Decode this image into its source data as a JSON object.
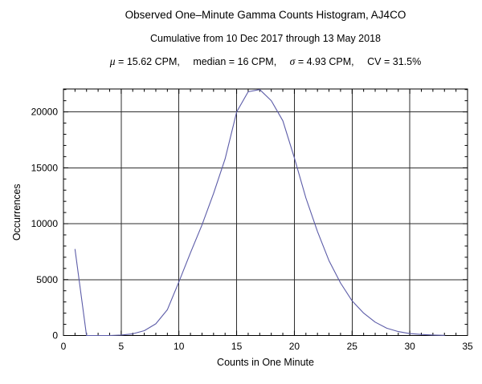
{
  "header": {
    "title": "Observed One–Minute Gamma Counts Histogram, AJ4CO",
    "subtitle": "Cumulative from 10 Dec 2017 through 13 May 2018",
    "stats": {
      "mu_symbol": "μ",
      "mu_text": " = 15.62 CPM,",
      "median_text": "median = 16 CPM,",
      "sigma_symbol": "σ",
      "sigma_text": " = 4.93 CPM,",
      "cv_text": "CV = 31.5%"
    }
  },
  "chart_data": {
    "type": "line",
    "title": "Observed One–Minute Gamma Counts Histogram, AJ4CO",
    "subtitle": "Cumulative from 10 Dec 2017 through 13 May 2018",
    "stats_label": "μ = 15.62 CPM,  median = 16 CPM,  σ = 4.93 CPM,  CV = 31.5%",
    "xlabel": "Counts in One Minute",
    "ylabel": "Occurrences",
    "xlim": [
      0,
      35
    ],
    "ylim": [
      0,
      22050
    ],
    "x_major_ticks": [
      0,
      5,
      10,
      15,
      20,
      25,
      30,
      35
    ],
    "y_major_ticks": [
      0,
      5000,
      10000,
      15000,
      20000
    ],
    "x_minor_step": 1,
    "y_minor_step": 1000,
    "grid": true,
    "legend": "none",
    "frame": true,
    "colors": {
      "line": "#5c5ca8",
      "grid": "#2e2e2e",
      "frame": "#000000",
      "text": "#000000",
      "background": "#ffffff"
    },
    "series": [
      {
        "name": "occurrences",
        "x": [
          1,
          2,
          3,
          4,
          5,
          6,
          7,
          8,
          9,
          10,
          11,
          12,
          13,
          14,
          15,
          16,
          17,
          18,
          19,
          20,
          21,
          22,
          23,
          24,
          25,
          26,
          27,
          28,
          29,
          30,
          31,
          32,
          33
        ],
        "y": [
          7700,
          0,
          0,
          0,
          40,
          150,
          430,
          1050,
          2300,
          4800,
          7400,
          9900,
          12700,
          15800,
          20000,
          21800,
          22000,
          21000,
          19200,
          15900,
          12300,
          9300,
          6700,
          4700,
          3100,
          2000,
          1200,
          650,
          350,
          170,
          90,
          40,
          15
        ]
      }
    ]
  }
}
